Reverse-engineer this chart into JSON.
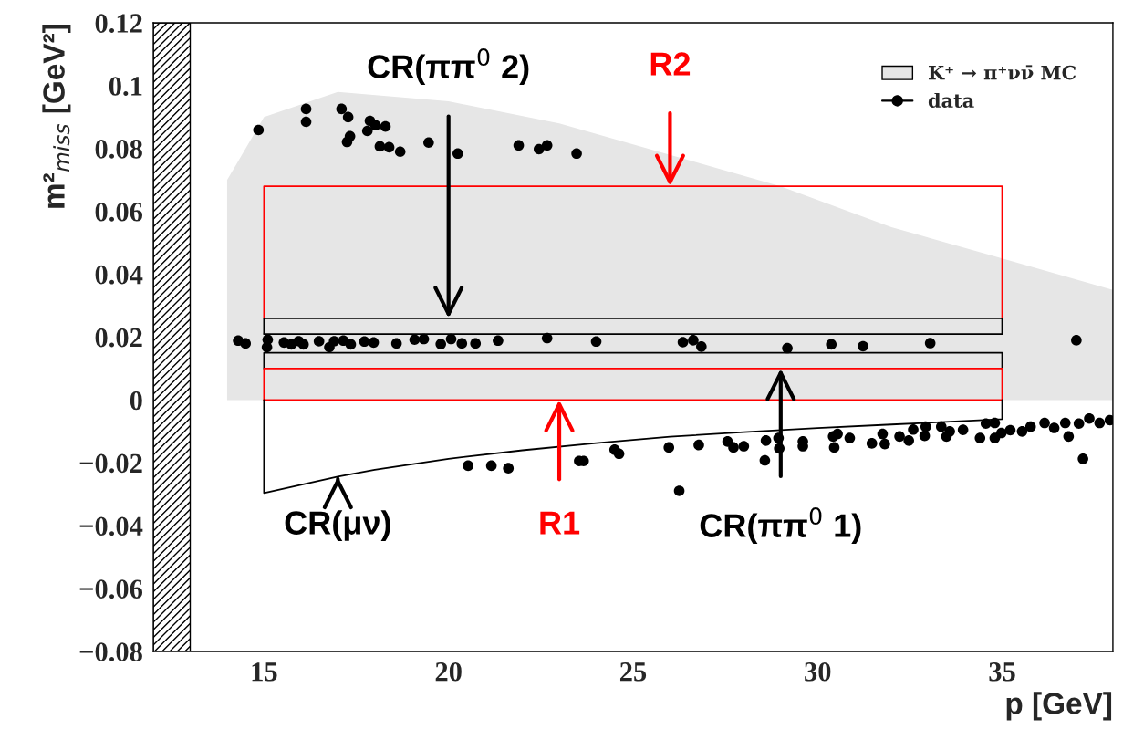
{
  "chart_data": {
    "type": "scatter",
    "xlabel": "p [GeV]",
    "ylabel": "m²$_{miss}$ [GeV²]",
    "xlim": [
      12,
      38
    ],
    "xticks": [
      15,
      20,
      25,
      30,
      35
    ],
    "ylim": [
      -0.08,
      0.12
    ],
    "yticks": [
      {
        "value": -0.08,
        "label": "−0.08"
      },
      {
        "value": -0.06,
        "label": "−0.06"
      },
      {
        "value": -0.04,
        "label": "−0.04"
      },
      {
        "value": -0.02,
        "label": "−0.02"
      },
      0,
      0.02,
      0.04,
      0.06,
      0.08,
      0.1,
      0.12
    ],
    "grid": false,
    "legend": "top right",
    "bands": [
      {
        "axis": "x",
        "from": 12,
        "to": 13,
        "color": "#000000"
      }
    ],
    "series": [
      {
        "name": "K⁺ → π⁺νν̄ MC",
        "type": "area",
        "color": "#e6e6e6",
        "x": [
          14,
          15,
          17,
          20,
          23,
          26,
          29,
          32,
          35,
          38
        ],
        "values": [
          0.07,
          0.09,
          0.098,
          0.095,
          0.088,
          0.078,
          0.068,
          0.055,
          0.045,
          0.035
        ]
      },
      {
        "type": "line",
        "color": "#ff0000",
        "x": [
          15,
          15,
          35,
          35
        ],
        "values": [
          0.026,
          0.068,
          0.068,
          0.026
        ]
      },
      {
        "type": "line",
        "color": "#000000",
        "x": [
          15,
          15,
          35,
          35
        ],
        "values": [
          0.021,
          0.026,
          0.026,
          0.021
        ]
      },
      {
        "type": "line",
        "color": "#000000",
        "x": [
          15,
          35
        ],
        "values": [
          0.021,
          0.021
        ]
      },
      {
        "type": "line",
        "color": "#000000",
        "x": [
          15,
          15,
          35,
          35
        ],
        "values": [
          0.01,
          0.015,
          0.015,
          0.01
        ]
      },
      {
        "type": "line",
        "color": "#ff0000",
        "x": [
          15,
          15,
          35,
          35
        ],
        "values": [
          0.0,
          0.01,
          0.01,
          0.0
        ]
      },
      {
        "type": "line",
        "color": "#ff0000",
        "x": [
          15,
          35
        ],
        "values": [
          0.0,
          0.0
        ]
      },
      {
        "type": "line",
        "color": "#000000",
        "x": [
          15,
          15,
          16,
          17,
          18,
          20,
          22,
          24,
          26,
          28,
          30,
          32,
          35,
          35
        ],
        "values": [
          0.0,
          -0.0296,
          -0.027,
          -0.0244,
          -0.0222,
          -0.0187,
          -0.016,
          -0.0137,
          -0.0117,
          -0.0102,
          -0.0089,
          -0.0078,
          -0.0061,
          0.0
        ]
      },
      {
        "name": "data",
        "color": "#000000",
        "marker": "circle",
        "x": [
          14.85,
          16.14,
          16.14,
          17.1,
          17.28,
          17.33,
          17.25,
          17.87,
          18.02,
          17.8,
          18.29,
          18.14,
          18.39,
          18.69,
          19.46,
          20.25,
          21.9,
          22.45,
          22.67,
          23.47,
          14.3,
          14.5,
          15.08,
          15.1,
          15.54,
          15.74,
          15.94,
          16.07,
          16.49,
          16.77,
          16.9,
          17.15,
          17.35,
          17.72,
          17.97,
          18.59,
          19.08,
          19.33,
          19.79,
          20.07,
          20.36,
          20.73,
          21.34,
          22.67,
          24.0,
          26.35,
          26.63,
          26.85,
          29.18,
          30.37,
          31.23,
          33.05,
          37.01,
          20.53,
          21.16,
          21.62,
          23.54,
          23.66,
          24.5,
          24.62,
          26.25,
          25.97,
          26.78,
          27.56,
          27.72,
          28.0,
          28.6,
          28.57,
          28.94,
          28.96,
          29.6,
          29.6,
          30.42,
          30.54,
          30.45,
          30.87,
          31.47,
          31.82,
          31.76,
          32.22,
          32.47,
          32.59,
          32.93,
          32.9,
          33.35,
          33.49,
          33.58,
          33.94,
          34.4,
          34.56,
          34.8,
          34.8,
          34.98,
          35.22,
          35.54,
          35.77,
          36.15,
          36.41,
          36.71,
          36.8,
          37.08,
          37.36,
          37.19,
          37.64,
          37.92
        ],
        "values": [
          0.0859,
          0.0926,
          0.0885,
          0.0926,
          0.09,
          0.0839,
          0.0821,
          0.0888,
          0.0874,
          0.0856,
          0.087,
          0.0807,
          0.0804,
          0.079,
          0.0819,
          0.0784,
          0.081,
          0.0798,
          0.081,
          0.0784,
          0.0189,
          0.018,
          0.0168,
          0.0192,
          0.0183,
          0.0177,
          0.0187,
          0.0177,
          0.0187,
          0.0168,
          0.0187,
          0.0189,
          0.0177,
          0.0186,
          0.0183,
          0.018,
          0.0192,
          0.0194,
          0.0178,
          0.0194,
          0.018,
          0.018,
          0.0189,
          0.0197,
          0.0186,
          0.0184,
          0.019,
          0.017,
          0.0165,
          0.0177,
          0.0171,
          0.0181,
          0.019,
          -0.0209,
          -0.0209,
          -0.0217,
          -0.0194,
          -0.0194,
          -0.0158,
          -0.0171,
          -0.0289,
          -0.0151,
          -0.0143,
          -0.0132,
          -0.0151,
          -0.0147,
          -0.0129,
          -0.0192,
          -0.0121,
          -0.0154,
          -0.0132,
          -0.0147,
          -0.0116,
          -0.0108,
          -0.0151,
          -0.0121,
          -0.0138,
          -0.014,
          -0.0108,
          -0.0116,
          -0.0129,
          -0.0094,
          -0.0085,
          -0.0114,
          -0.0085,
          -0.0116,
          -0.01,
          -0.0095,
          -0.0121,
          -0.0075,
          -0.0073,
          -0.0121,
          -0.0105,
          -0.0096,
          -0.01,
          -0.0085,
          -0.0073,
          -0.0089,
          -0.0073,
          -0.0116,
          -0.0075,
          -0.0059,
          -0.0187,
          -0.0073,
          -0.0064
        ]
      }
    ],
    "annotations": [
      {
        "text": "CR(ππ$^{0}$ 2)",
        "x": 20,
        "y": 0.026
      },
      {
        "text": "R2",
        "x": 26,
        "y": 0.068
      },
      {
        "text": "CR(μν)",
        "x": 17,
        "y": -0.0244
      },
      {
        "text": "R1",
        "x": 23,
        "y": 0.0
      },
      {
        "text": "CR(ππ$^{0}$ 1)",
        "x": 29,
        "y": 0.01
      }
    ]
  }
}
